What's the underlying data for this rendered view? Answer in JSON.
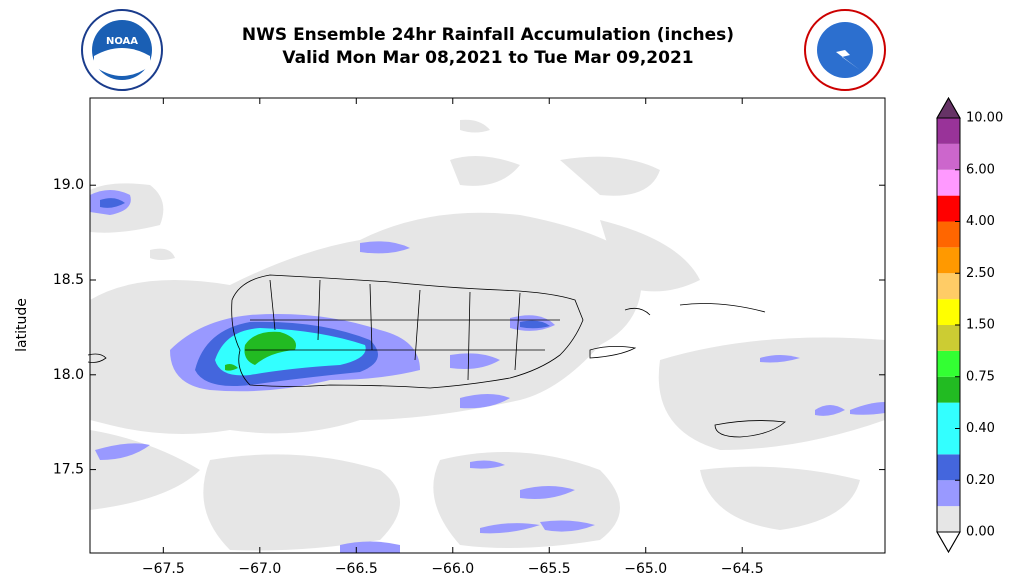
{
  "chart_data": {
    "type": "map",
    "title": "NWS Ensemble 24hr Rainfall Accumulation (inches)",
    "subtitle": "Valid Mon Mar 08,2021 to Tue Mar 09,2021",
    "y_label": "latitude",
    "xlim": [
      -67.88,
      -63.76
    ],
    "ylim": [
      17.06,
      19.46
    ],
    "xticks": [
      {
        "value": -67.5,
        "label": "−67.5"
      },
      {
        "value": -67.0,
        "label": "−67.0"
      },
      {
        "value": -66.5,
        "label": "−66.5"
      },
      {
        "value": -66.0,
        "label": "−66.0"
      },
      {
        "value": -65.5,
        "label": "−65.5"
      },
      {
        "value": -65.0,
        "label": "−65.0"
      },
      {
        "value": -64.5,
        "label": "−64.5"
      }
    ],
    "yticks": [
      {
        "value": 17.5,
        "label": "17.5"
      },
      {
        "value": 18.0,
        "label": "18.0"
      },
      {
        "value": 18.5,
        "label": "18.5"
      },
      {
        "value": 19.0,
        "label": "19.0"
      }
    ],
    "colorbar": {
      "ticks": [
        {
          "value": 0,
          "label": "0.00"
        },
        {
          "value": 0.2,
          "label": "0.20"
        },
        {
          "value": 0.4,
          "label": "0.40"
        },
        {
          "value": 0.75,
          "label": "0.75"
        },
        {
          "value": 1.5,
          "label": "1.50"
        },
        {
          "value": 2.5,
          "label": "2.50"
        },
        {
          "value": 4,
          "label": "4.00"
        },
        {
          "value": 6,
          "label": "6.00"
        },
        {
          "value": 10,
          "label": "10.00"
        }
      ],
      "colors": [
        "#e6e6e6",
        "#9999ff",
        "#4466dd",
        "#33ffff",
        "#33ffff",
        "#22bb22",
        "#33ff33",
        "#cccc33",
        "#ffff00",
        "#ffcc66",
        "#ff9900",
        "#ff6600",
        "#ff0000",
        "#ff99ff",
        "#cc66cc",
        "#993399"
      ],
      "under_color": "#ffffff",
      "over_color": "#663366"
    }
  }
}
